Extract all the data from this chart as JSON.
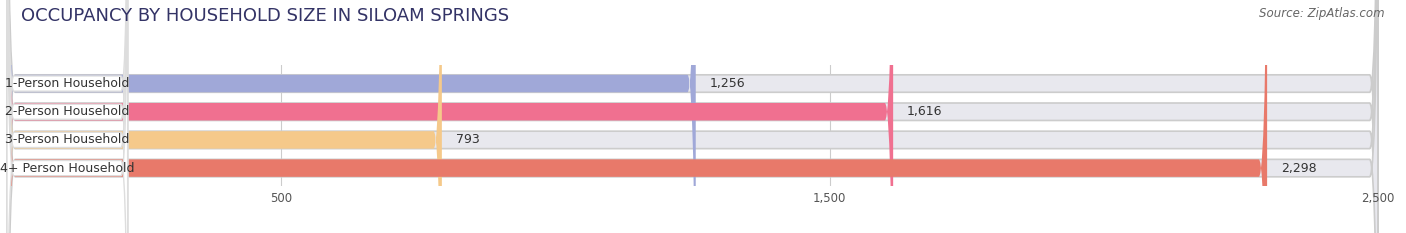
{
  "title": "OCCUPANCY BY HOUSEHOLD SIZE IN SILOAM SPRINGS",
  "source": "Source: ZipAtlas.com",
  "categories": [
    "1-Person Household",
    "2-Person Household",
    "3-Person Household",
    "4+ Person Household"
  ],
  "values": [
    1256,
    1616,
    793,
    2298
  ],
  "bar_colors": [
    "#a0a8d8",
    "#f07090",
    "#f5c98a",
    "#e8796a"
  ],
  "xlim": [
    0,
    2700
  ],
  "data_max": 2500,
  "xticks": [
    500,
    1500,
    2500
  ],
  "background_color": "#ffffff",
  "bar_bg_color": "#e8e8ee",
  "title_fontsize": 13,
  "source_fontsize": 8.5,
  "label_fontsize": 9,
  "value_fontsize": 9,
  "bar_height": 0.62,
  "fig_width": 14.06,
  "fig_height": 2.33,
  "label_box_color": "#ffffff",
  "label_text_color": "#333333"
}
